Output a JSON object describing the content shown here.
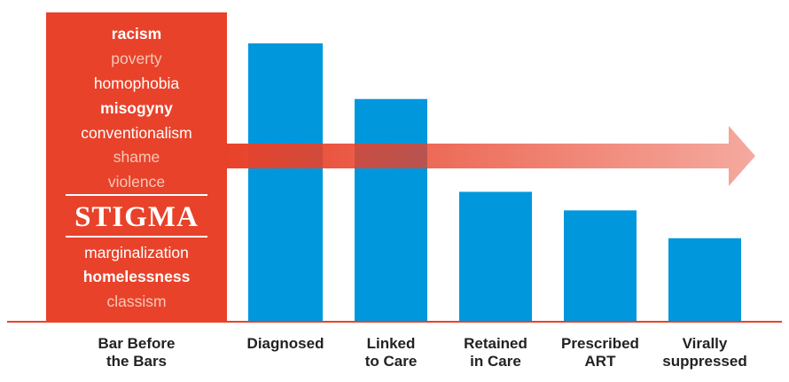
{
  "chart_data": {
    "type": "bar",
    "title": "",
    "xlabel": "",
    "ylabel": "",
    "ylim": [
      0,
      100
    ],
    "grid": false,
    "categories": [
      "Bar Before\nthe Bars",
      "Diagnosed",
      "Linked\nto Care",
      "Retained\nin Care",
      "Prescribed\nART",
      "Virally\nsuppressed"
    ],
    "values": [
      100,
      90,
      72,
      42,
      36,
      27
    ],
    "colors": {
      "stigma_bar": "#e8422a",
      "bars": "#0097dd",
      "axis": "#e8422a",
      "arrow": "#e8422a"
    },
    "stigma_words": [
      {
        "text": "racism",
        "style": "bold"
      },
      {
        "text": "poverty",
        "style": "light"
      },
      {
        "text": "homophobia",
        "style": "regular"
      },
      {
        "text": "misogyny",
        "style": "bold"
      },
      {
        "text": "conventionalism",
        "style": "regular"
      },
      {
        "text": "shame",
        "style": "light"
      },
      {
        "text": "violence",
        "style": "light"
      },
      {
        "text": "STIGMA",
        "style": "big"
      },
      {
        "text": "marginalization",
        "style": "regular"
      },
      {
        "text": "homelessness",
        "style": "bold"
      },
      {
        "text": "classism",
        "style": "light"
      }
    ]
  }
}
